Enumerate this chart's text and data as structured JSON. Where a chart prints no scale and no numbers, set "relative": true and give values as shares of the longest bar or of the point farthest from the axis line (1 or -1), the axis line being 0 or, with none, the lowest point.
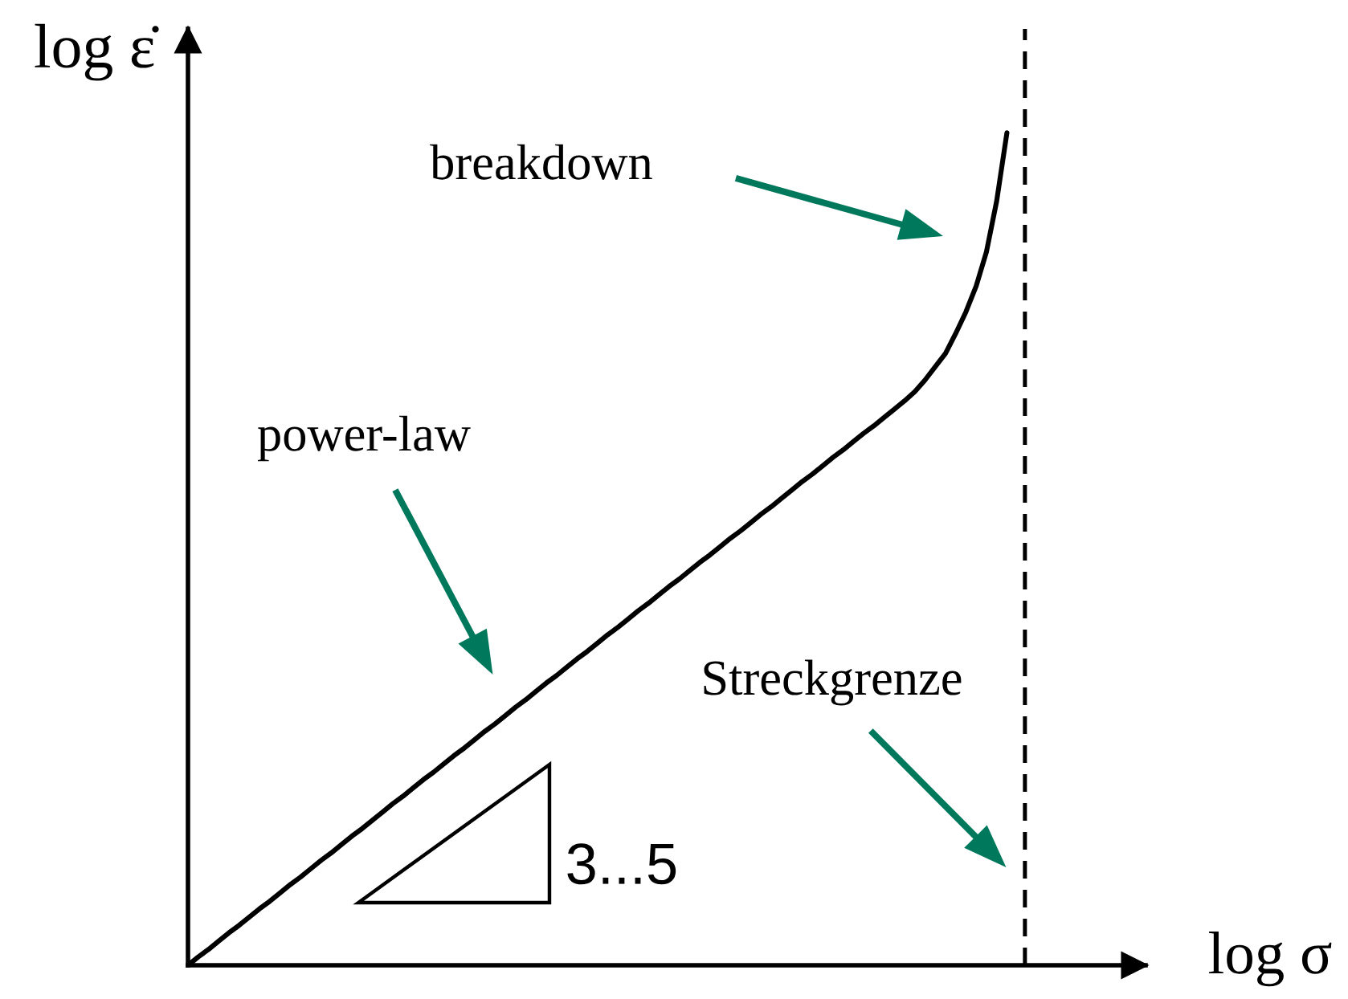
{
  "chart_data": {
    "type": "line",
    "relative": true,
    "xlabel": "log σ",
    "ylabel": "log ε̇",
    "categories": [
      null,
      null,
      null,
      null,
      null,
      null,
      null,
      null,
      null,
      null,
      null,
      null,
      null,
      null,
      null,
      null,
      null,
      null,
      null,
      null,
      null,
      null,
      null,
      null,
      null,
      null,
      null,
      null,
      null,
      null,
      null,
      null,
      null,
      null,
      null,
      null,
      null,
      null,
      null,
      null,
      null,
      null,
      null,
      null,
      null,
      null,
      null,
      null,
      null,
      null,
      null,
      null,
      null,
      null,
      null,
      null,
      null,
      null,
      null,
      null,
      null,
      null,
      null,
      null,
      null,
      null,
      null,
      null,
      null,
      null,
      null,
      null,
      null,
      null,
      null,
      null,
      null,
      null,
      null,
      null,
      null
    ],
    "values": [
      0,
      0.01,
      0.019,
      0.029,
      0.039,
      0.048,
      0.058,
      0.068,
      0.077,
      0.087,
      0.097,
      0.106,
      0.116,
      0.126,
      0.135,
      0.145,
      0.155,
      0.164,
      0.174,
      0.184,
      0.194,
      0.203,
      0.213,
      0.223,
      0.232,
      0.242,
      0.252,
      0.261,
      0.271,
      0.281,
      0.29,
      0.3,
      0.31,
      0.319,
      0.329,
      0.339,
      0.348,
      0.358,
      0.368,
      0.377,
      0.387,
      0.397,
      0.406,
      0.416,
      0.426,
      0.435,
      0.445,
      0.455,
      0.464,
      0.474,
      0.484,
      0.493,
      0.503,
      0.513,
      0.522,
      0.532,
      0.542,
      0.551,
      0.561,
      0.571,
      0.581,
      0.59,
      0.6,
      0.61,
      0.619,
      0.629,
      0.639,
      0.648,
      0.658,
      0.668,
      0.678,
      0.689,
      0.703,
      0.719,
      0.735,
      0.759,
      0.785,
      0.816,
      0.857,
      0.918,
      1.0
    ],
    "color": "#000000",
    "line_style": "solid",
    "ref_lines": [
      {
        "axis": "x",
        "label": "Streckgrenze",
        "color": "#000000",
        "line_style": "dashed"
      }
    ],
    "annotations": [
      "breakdown",
      "power-law",
      "3...5"
    ]
  }
}
